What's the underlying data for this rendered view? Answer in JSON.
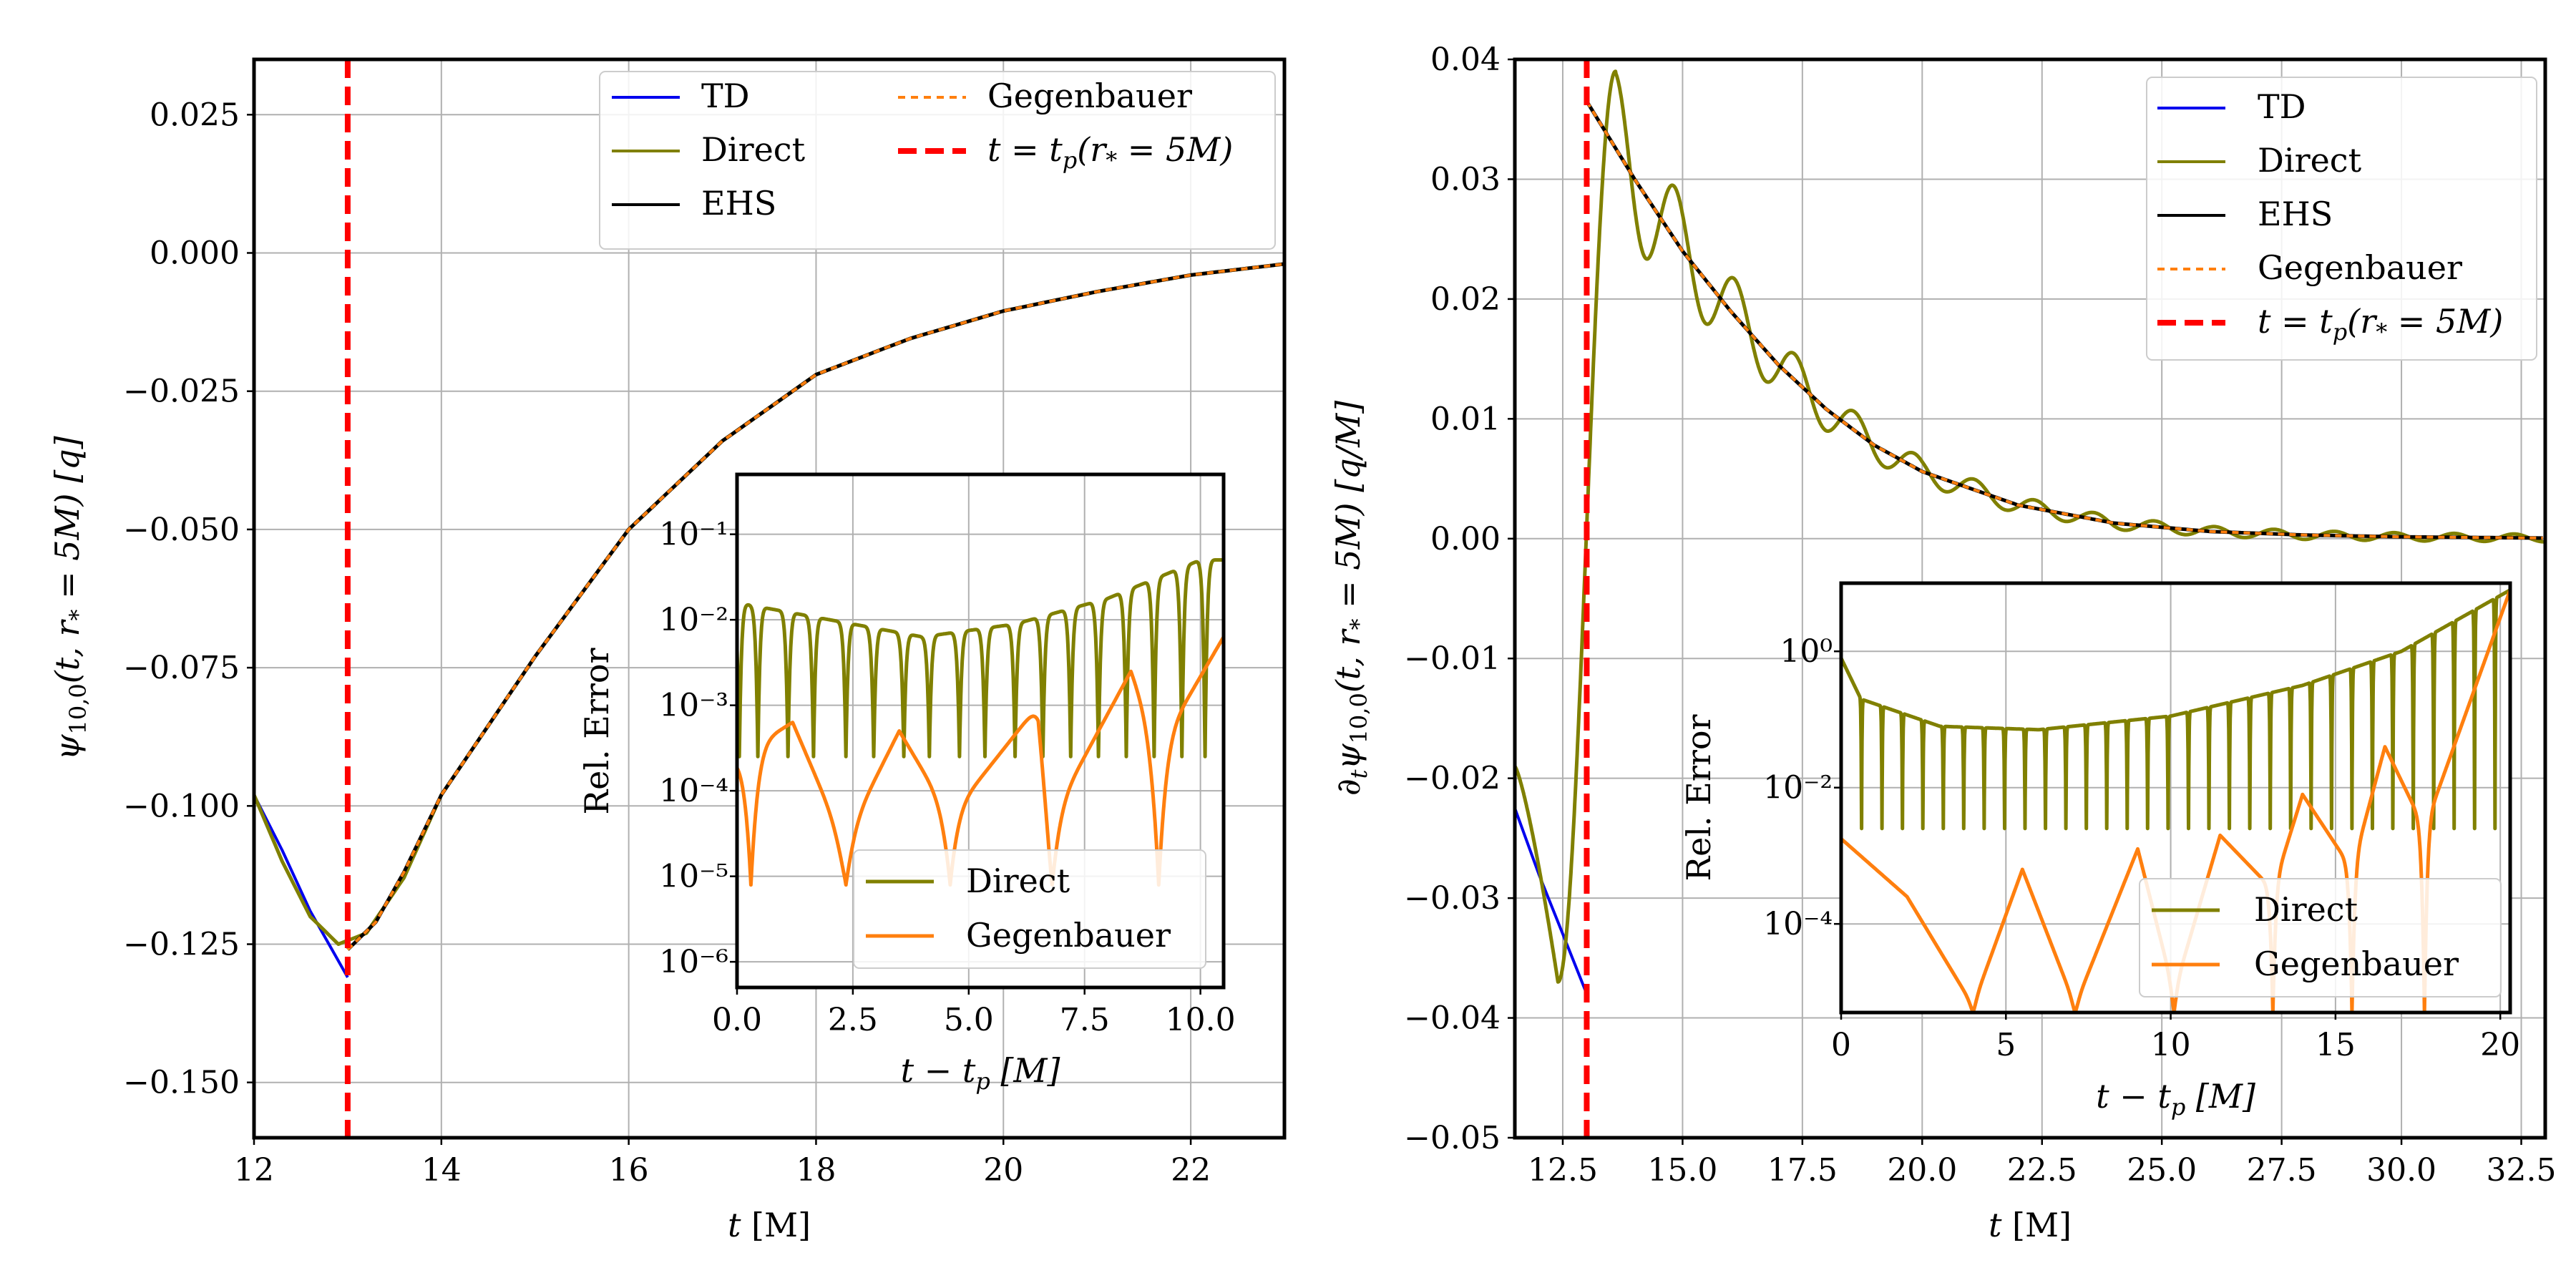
{
  "figure": {
    "panels": 2
  },
  "chart_data": [
    {
      "type": "line",
      "panel": "left",
      "xlabel": "t [M]",
      "ylabel": "ψ₁₀,₀(t, r* = 5M) [q]",
      "xlim": [
        12,
        23
      ],
      "ylim": [
        -0.16,
        0.035
      ],
      "xticks": [
        12,
        14,
        16,
        18,
        20,
        22
      ],
      "xtick_labels": [
        "12",
        "14",
        "16",
        "18",
        "20",
        "22"
      ],
      "yticks": [
        0.025,
        0.0,
        -0.025,
        -0.05,
        -0.075,
        -0.1,
        -0.125,
        -0.15
      ],
      "ytick_labels": [
        "0.025",
        "0.000",
        "−0.025",
        "−0.050",
        "−0.075",
        "−0.100",
        "−0.125",
        "−0.150"
      ],
      "grid": true,
      "vline": {
        "x": 13.0,
        "label": "t = tp(r* = 5M)",
        "color": "#ff0000"
      },
      "legend": {
        "location": "top-right",
        "entries": [
          {
            "label": "TD",
            "color": "#0000ee",
            "style": "solid"
          },
          {
            "label": "Direct",
            "color": "#808000",
            "style": "solid"
          },
          {
            "label": "EHS",
            "color": "#000000",
            "style": "solid"
          },
          {
            "label": "Gegenbauer",
            "color": "#ff7f0e",
            "style": "dotted"
          },
          {
            "label": "t = tp(r* = 5M)",
            "color": "#ff0000",
            "style": "dashed"
          }
        ]
      },
      "series": [
        {
          "name": "TD",
          "color": "#0000ee",
          "x": [
            12,
            12.3,
            12.6,
            13.0
          ],
          "y": [
            -0.098,
            -0.108,
            -0.119,
            -0.131
          ]
        },
        {
          "name": "Direct",
          "color": "#808000",
          "x": [
            12,
            12.3,
            12.6,
            12.9,
            13.2,
            13.6,
            14,
            15,
            16,
            17,
            18,
            19,
            20,
            21,
            22,
            23
          ],
          "y": [
            -0.098,
            -0.11,
            -0.12,
            -0.125,
            -0.123,
            -0.113,
            -0.098,
            -0.073,
            -0.05,
            -0.034,
            -0.022,
            -0.0155,
            -0.0105,
            -0.007,
            -0.004,
            -0.002
          ]
        },
        {
          "name": "EHS",
          "color": "#000000",
          "x": [
            13.0,
            13.3,
            13.6,
            14,
            15,
            16,
            17,
            18,
            19,
            20,
            21,
            22,
            23
          ],
          "y": [
            -0.126,
            -0.121,
            -0.112,
            -0.098,
            -0.073,
            -0.05,
            -0.034,
            -0.022,
            -0.0155,
            -0.0105,
            -0.007,
            -0.004,
            -0.002
          ]
        },
        {
          "name": "Gegenbauer",
          "color": "#ff7f0e",
          "x": [
            13.0,
            13.3,
            13.6,
            14,
            15,
            16,
            17,
            18,
            19,
            20,
            21,
            22,
            23
          ],
          "y": [
            -0.126,
            -0.121,
            -0.112,
            -0.098,
            -0.073,
            -0.05,
            -0.034,
            -0.022,
            -0.0155,
            -0.0105,
            -0.007,
            -0.004,
            -0.002
          ]
        }
      ],
      "inset": {
        "xlabel": "t − tp [M]",
        "ylabel": "Rel. Error",
        "xlim": [
          0,
          10.5
        ],
        "ylim_log10": [
          -6.3,
          -0.3
        ],
        "xticks": [
          0,
          2.5,
          5,
          7.5,
          10
        ],
        "xtick_labels": [
          "0.0",
          "2.5",
          "5.0",
          "7.5",
          "10.0"
        ],
        "yticks_log10": [
          -1,
          -2,
          -3,
          -4,
          -5,
          -6
        ],
        "ytick_labels": [
          "10⁻¹",
          "10⁻²",
          "10⁻³",
          "10⁻⁴",
          "10⁻⁵",
          "10⁻⁶"
        ],
        "grid": true,
        "legend": [
          {
            "label": "Direct",
            "color": "#808000"
          },
          {
            "label": "Gegenbauer",
            "color": "#ff7f0e"
          }
        ],
        "series": [
          {
            "name": "Direct",
            "color": "#808000",
            "envelope": [
              [
                0,
                -1.8
              ],
              [
                2,
                -2.0
              ],
              [
                4,
                -2.2
              ],
              [
                6,
                -2.05
              ],
              [
                8,
                -1.75
              ],
              [
                10,
                -1.3
              ]
            ],
            "dips_x": [
              0.05,
              0.45,
              1.1,
              1.65,
              2.35,
              2.95,
              3.6,
              4.15,
              4.8,
              5.35,
              6.0,
              6.6,
              7.2,
              7.8,
              8.4,
              9.0,
              9.6,
              10.1
            ],
            "dip_depth": -3.6
          },
          {
            "name": "Gegenbauer",
            "color": "#ff7f0e",
            "envelope": [
              [
                0,
                -3.6
              ],
              [
                1.2,
                -3.2
              ],
              [
                2.3,
                -4.6
              ],
              [
                3.5,
                -3.3
              ],
              [
                4.6,
                -4.3
              ],
              [
                6.5,
                -3.0
              ],
              [
                6.8,
                -4.3
              ],
              [
                8.5,
                -2.6
              ],
              [
                9.1,
                -3.5
              ],
              [
                10.5,
                -2.2
              ]
            ],
            "dips_x": [
              0.3,
              2.35,
              4.6,
              6.8,
              9.1
            ],
            "dip_depth": -5.1
          }
        ]
      }
    },
    {
      "type": "line",
      "panel": "right",
      "xlabel": "t [M]",
      "ylabel": "∂tψ₁₀,₀(t, r* = 5M) [q/M]",
      "xlim": [
        11.5,
        33.0
      ],
      "ylim": [
        -0.05,
        0.04
      ],
      "xticks": [
        12.5,
        15.0,
        17.5,
        20.0,
        22.5,
        25.0,
        27.5,
        30.0,
        32.5
      ],
      "xtick_labels": [
        "12.5",
        "15.0",
        "17.5",
        "20.0",
        "22.5",
        "25.0",
        "27.5",
        "30.0",
        "32.5"
      ],
      "yticks": [
        0.04,
        0.03,
        0.02,
        0.01,
        0.0,
        -0.01,
        -0.02,
        -0.03,
        -0.04,
        -0.05
      ],
      "ytick_labels": [
        "0.04",
        "0.03",
        "0.02",
        "0.01",
        "0.00",
        "−0.01",
        "−0.02",
        "−0.03",
        "−0.04",
        "−0.05"
      ],
      "grid": true,
      "vline": {
        "x": 13.0,
        "label": "t = tp(r* = 5M)",
        "color": "#ff0000"
      },
      "legend": {
        "location": "top-right",
        "entries": [
          {
            "label": "TD",
            "color": "#0000ee",
            "style": "solid"
          },
          {
            "label": "Direct",
            "color": "#808000",
            "style": "solid"
          },
          {
            "label": "EHS",
            "color": "#000000",
            "style": "solid"
          },
          {
            "label": "Gegenbauer",
            "color": "#ff7f0e",
            "style": "dotted"
          },
          {
            "label": "t = tp(r* = 5M)",
            "color": "#ff0000",
            "style": "dashed"
          }
        ]
      },
      "series": [
        {
          "name": "TD",
          "color": "#0000ee",
          "x": [
            11.5,
            12.0,
            12.5,
            13.0
          ],
          "y": [
            -0.0225,
            -0.028,
            -0.033,
            -0.038
          ]
        },
        {
          "name": "Direct",
          "color": "#808000",
          "note": "oscillates around EHS, peak ≈0.039 at t≈13.6, min ≈-0.037 at t≈12.4"
        },
        {
          "name": "EHS",
          "color": "#000000",
          "x": [
            13.0,
            14.0,
            15.0,
            16.0,
            17.0,
            18.0,
            19.0,
            20.0,
            22.0,
            24.0,
            26.0,
            28.0,
            30.0,
            33.0
          ],
          "y": [
            0.0365,
            0.03,
            0.024,
            0.019,
            0.0145,
            0.0108,
            0.0078,
            0.0056,
            0.0028,
            0.0013,
            0.0006,
            0.0003,
            0.00015,
            5e-05
          ]
        },
        {
          "name": "Gegenbauer",
          "color": "#ff7f0e",
          "x": [
            13.0,
            14.0,
            15.0,
            16.0,
            17.0,
            18.0,
            19.0,
            20.0,
            22.0,
            24.0,
            26.0,
            28.0,
            30.0,
            33.0
          ],
          "y": [
            0.0365,
            0.03,
            0.024,
            0.019,
            0.0145,
            0.0108,
            0.0078,
            0.0056,
            0.0028,
            0.0013,
            0.0006,
            0.0003,
            0.00015,
            5e-05
          ]
        }
      ],
      "inset": {
        "xlabel": "t − tp [M]",
        "ylabel": "Rel. Error",
        "xlim": [
          0,
          20.3
        ],
        "ylim_log10": [
          -5.3,
          1.0
        ],
        "xticks": [
          0,
          5,
          10,
          15,
          20
        ],
        "xtick_labels": [
          "0",
          "5",
          "10",
          "15",
          "20"
        ],
        "yticks_log10": [
          0,
          -2,
          -4
        ],
        "ytick_labels": [
          "10⁰",
          "10⁻²",
          "10⁻⁴"
        ],
        "grid": true,
        "legend": [
          {
            "label": "Direct",
            "color": "#808000"
          },
          {
            "label": "Gegenbauer",
            "color": "#ff7f0e"
          }
        ],
        "series": [
          {
            "name": "Direct",
            "color": "#808000",
            "envelope": [
              [
                0,
                -0.1
              ],
              [
                0.6,
                -0.7
              ],
              [
                3,
                -1.1
              ],
              [
                6,
                -1.15
              ],
              [
                10,
                -0.95
              ],
              [
                14,
                -0.5
              ],
              [
                17,
                0.0
              ],
              [
                20.3,
                0.9
              ]
            ],
            "period": 0.62,
            "dip_depth": -2.6
          },
          {
            "name": "Gegenbauer",
            "color": "#ff7f0e",
            "envelope": [
              [
                0,
                -2.75
              ],
              [
                2,
                -3.6
              ],
              [
                4,
                -5.2
              ],
              [
                5.5,
                -3.2
              ],
              [
                7.1,
                -5.2
              ],
              [
                9,
                -2.9
              ],
              [
                10.1,
                -5.0
              ],
              [
                11.5,
                -2.7
              ],
              [
                13.1,
                -3.5
              ],
              [
                14,
                -2.1
              ],
              [
                15.5,
                -3.2
              ],
              [
                16.5,
                -1.4
              ],
              [
                17.7,
                -2.6
              ],
              [
                20.3,
                0.9
              ]
            ],
            "dips_x": [
              4.0,
              7.1,
              10.1,
              13.1,
              15.5,
              17.7
            ],
            "dip_depth": -5.3
          }
        ]
      }
    }
  ],
  "labels": {
    "left_ylabel_main": "ψ",
    "left_ylabel_sub": "10,0",
    "left_ylabel_rest": "(t, r",
    "left_ylabel_star": "*",
    "left_ylabel_end": " = 5M)  [q]",
    "right_ylabel_pre": "∂",
    "right_ylabel_t": "t",
    "right_ylabel_main": "ψ",
    "right_ylabel_sub": "10,0",
    "right_ylabel_rest": "(t, r",
    "right_ylabel_star": "*",
    "right_ylabel_end": " = 5M)    [q/M]",
    "xlabel_t": "t",
    "xlabel_unit": " [M]",
    "inset_xlabel_a": "t − t",
    "inset_xlabel_p": "p",
    "inset_xlabel_unit": " [M]",
    "leg_vline_a": "t = t",
    "leg_vline_p": "p",
    "leg_vline_b": "(r",
    "leg_vline_star": "*",
    "leg_vline_c": " = 5M)"
  }
}
